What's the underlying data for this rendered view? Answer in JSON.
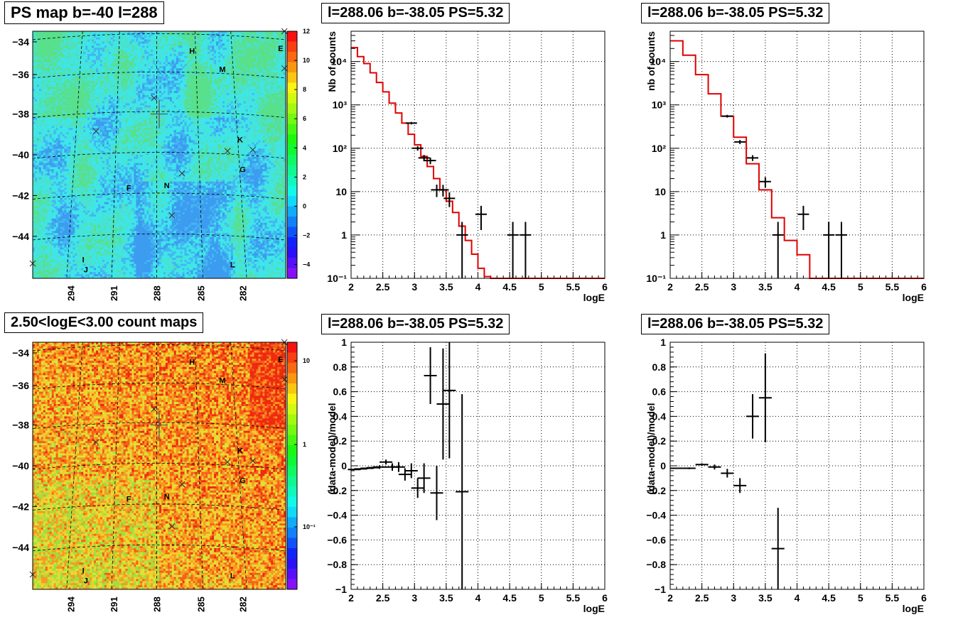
{
  "panels": {
    "map1": {
      "title": "PS map b=-40 l=288"
    },
    "map2": {
      "title": "2.50<logE<3.00 count maps"
    },
    "spec1": {
      "title": "l=288.06 b=-38.05 PS=5.32"
    },
    "spec2": {
      "title": "l=288.06 b=-38.05 PS=5.32"
    },
    "res1": {
      "title": "l=288.06 b=-38.05 PS=5.32"
    },
    "res2": {
      "title": "l=288.06 b=-38.05 PS=5.32"
    }
  },
  "chart_data": [
    {
      "id": "map1",
      "type": "heatmap",
      "title": "PS map b=-40 l=288",
      "ylim": [
        -45.8,
        -33.5
      ],
      "y_ticks": [
        "-34",
        "-36",
        "-38",
        "-40",
        "-42",
        "-44"
      ],
      "x_ticks": [
        "294",
        "291",
        "288",
        "285",
        "282"
      ],
      "colorbar": {
        "range": [
          -5,
          12
        ],
        "ticks": [
          "12",
          "10",
          "8",
          "6",
          "4",
          "2",
          "0",
          "-2",
          "-4"
        ]
      },
      "source_labels": [
        "H",
        "M",
        "E",
        "K",
        "G",
        "F",
        "N",
        "I",
        "J",
        "L"
      ]
    },
    {
      "id": "map2",
      "type": "heatmap",
      "title": "2.50<logE<3.00 count maps",
      "ylim": [
        -45.8,
        -33.5
      ],
      "y_ticks": [
        "-34",
        "-36",
        "-38",
        "-40",
        "-42",
        "-44"
      ],
      "x_ticks": [
        "294",
        "291",
        "288",
        "285",
        "282"
      ],
      "colorbar": {
        "scale": "log",
        "ticks": [
          "10",
          "1",
          "10⁻¹"
        ]
      },
      "source_labels": [
        "H",
        "M",
        "E",
        "K",
        "G",
        "F",
        "N",
        "I",
        "J",
        "L"
      ]
    },
    {
      "id": "spec1",
      "type": "line",
      "title": "l=288.06 b=-38.05 PS=5.32",
      "xlabel": "logE",
      "ylabel": "Nb of counts",
      "xlim": [
        2,
        6
      ],
      "ylim": [
        0.1,
        50000
      ],
      "yscale": "log",
      "x_ticks": [
        "2",
        "2.5",
        "3",
        "3.5",
        "4",
        "4.5",
        "5",
        "5.5",
        "6"
      ],
      "y_ticks": [
        {
          "v": 10000,
          "t": "10⁴"
        },
        {
          "v": 1000,
          "t": "10³"
        },
        {
          "v": 100,
          "t": "10²"
        },
        {
          "v": 10,
          "t": "10"
        },
        {
          "v": 1,
          "t": "1"
        },
        {
          "v": 0.1,
          "t": "10⁻¹"
        }
      ],
      "grid": true,
      "model": {
        "edges": [
          2.0,
          2.1,
          2.2,
          2.3,
          2.4,
          2.5,
          2.6,
          2.7,
          2.8,
          2.9,
          3.0,
          3.1,
          3.2,
          3.3,
          3.4,
          3.5,
          3.6,
          3.7,
          3.8,
          3.9,
          4.0,
          4.1,
          4.2,
          6.0
        ],
        "values": [
          21000,
          13000,
          9000,
          5500,
          3300,
          2000,
          1100,
          650,
          380,
          210,
          120,
          65,
          38,
          20,
          11,
          6,
          3.3,
          1.6,
          0.75,
          0.36,
          0.17,
          0.11,
          0.1
        ]
      },
      "data": [
        {
          "x": 3.15,
          "y": 60,
          "err": 10
        },
        {
          "x": 3.25,
          "y": 52,
          "err": 9
        },
        {
          "x": 3.05,
          "y": 100,
          "err": 12
        },
        {
          "x": 2.95,
          "y": 380,
          "err": 25
        },
        {
          "x": 3.35,
          "y": 11,
          "err": 3.5
        },
        {
          "x": 3.45,
          "y": 11,
          "err": 3.3
        },
        {
          "x": 3.55,
          "y": 7,
          "err": 2.6
        },
        {
          "x": 3.75,
          "y": 1,
          "err": 1
        },
        {
          "x": 4.05,
          "y": 3,
          "err": 1.7
        },
        {
          "x": 4.55,
          "y": 1,
          "err": 1
        },
        {
          "x": 4.75,
          "y": 1,
          "err": 1
        }
      ]
    },
    {
      "id": "spec2",
      "type": "line",
      "title": "l=288.06 b=-38.05 PS=5.32",
      "xlabel": "logE",
      "ylabel": "nb of counts",
      "xlim": [
        2,
        6
      ],
      "ylim": [
        0.1,
        50000
      ],
      "yscale": "log",
      "x_ticks": [
        "2",
        "2.5",
        "3",
        "3.5",
        "4",
        "4.5",
        "5",
        "5.5",
        "6"
      ],
      "y_ticks": [
        {
          "v": 10000,
          "t": "10⁴"
        },
        {
          "v": 1000,
          "t": "10³"
        },
        {
          "v": 100,
          "t": "10²"
        },
        {
          "v": 10,
          "t": "10"
        },
        {
          "v": 1,
          "t": "1"
        },
        {
          "v": 0.1,
          "t": "10⁻¹"
        }
      ],
      "grid": true,
      "model": {
        "edges": [
          2.0,
          2.2,
          2.4,
          2.6,
          2.8,
          3.0,
          3.2,
          3.4,
          3.6,
          3.8,
          4.0,
          4.2,
          6.0
        ],
        "values": [
          30000,
          14000,
          5000,
          1800,
          550,
          180,
          44,
          11,
          2.5,
          0.75,
          0.35,
          0.1
        ]
      },
      "data": [
        {
          "x": 2.9,
          "y": 550,
          "err": 40
        },
        {
          "x": 3.1,
          "y": 140,
          "err": 15
        },
        {
          "x": 3.3,
          "y": 60,
          "err": 9
        },
        {
          "x": 3.5,
          "y": 17,
          "err": 4.5
        },
        {
          "x": 3.7,
          "y": 1,
          "err": 1
        },
        {
          "x": 4.1,
          "y": 3,
          "err": 1.7
        },
        {
          "x": 4.5,
          "y": 1,
          "err": 1
        },
        {
          "x": 4.7,
          "y": 1,
          "err": 1
        }
      ]
    },
    {
      "id": "res1",
      "type": "scatter",
      "title": "l=288.06 b=-38.05 PS=5.32",
      "xlabel": "logE",
      "ylabel": "(data-model)/model",
      "xlim": [
        2,
        6
      ],
      "ylim": [
        -1,
        1
      ],
      "x_ticks": [
        "2",
        "2.5",
        "3",
        "3.5",
        "4",
        "4.5",
        "5",
        "5.5",
        "6"
      ],
      "y_ticks": [
        "1",
        "0.8",
        "0.6",
        "0.4",
        "0.2",
        "0",
        "-0.2",
        "-0.4",
        "-0.6",
        "-0.8",
        "-1"
      ],
      "grid": true,
      "points": [
        {
          "x": 2.05,
          "y": -0.03,
          "err": 0.005
        },
        {
          "x": 2.15,
          "y": -0.025,
          "err": 0.006
        },
        {
          "x": 2.25,
          "y": -0.02,
          "err": 0.008
        },
        {
          "x": 2.35,
          "y": -0.015,
          "err": 0.01
        },
        {
          "x": 2.45,
          "y": -0.01,
          "err": 0.015
        },
        {
          "x": 2.55,
          "y": 0.03,
          "err": 0.02
        },
        {
          "x": 2.65,
          "y": -0.01,
          "err": 0.03
        },
        {
          "x": 2.75,
          "y": -0.01,
          "err": 0.04
        },
        {
          "x": 2.85,
          "y": -0.07,
          "err": 0.05
        },
        {
          "x": 2.95,
          "y": -0.04,
          "err": 0.06
        },
        {
          "x": 3.05,
          "y": -0.18,
          "err": 0.08
        },
        {
          "x": 3.15,
          "y": -0.1,
          "err": 0.12
        },
        {
          "x": 3.25,
          "y": 0.73,
          "err": 0.23
        },
        {
          "x": 3.35,
          "y": -0.22,
          "err": 0.22
        },
        {
          "x": 3.45,
          "y": 0.5,
          "err": 0.45
        },
        {
          "x": 3.55,
          "y": 0.61,
          "err": 0.55
        },
        {
          "x": 3.75,
          "y": -0.21,
          "err": 0.79
        }
      ]
    },
    {
      "id": "res2",
      "type": "scatter",
      "title": "l=288.06 b=-38.05 PS=5.32",
      "xlabel": "logE",
      "ylabel": "(data-model)/model",
      "xlim": [
        2,
        6
      ],
      "ylim": [
        -1,
        1
      ],
      "x_ticks": [
        "2",
        "2.5",
        "3",
        "3.5",
        "4",
        "4.5",
        "5",
        "5.5",
        "6"
      ],
      "y_ticks": [
        "1",
        "0.8",
        "0.6",
        "0.4",
        "0.2",
        "0",
        "-0.2",
        "-0.4",
        "-0.6",
        "-0.8",
        "-1"
      ],
      "grid": true,
      "points": [
        {
          "x": 2.1,
          "y": -0.02,
          "err": 0.005
        },
        {
          "x": 2.3,
          "y": -0.02,
          "err": 0.007
        },
        {
          "x": 2.5,
          "y": 0.01,
          "err": 0.01
        },
        {
          "x": 2.7,
          "y": -0.01,
          "err": 0.02
        },
        {
          "x": 2.9,
          "y": -0.06,
          "err": 0.035
        },
        {
          "x": 3.1,
          "y": -0.16,
          "err": 0.06
        },
        {
          "x": 3.3,
          "y": 0.4,
          "err": 0.18
        },
        {
          "x": 3.5,
          "y": 0.55,
          "err": 0.36
        },
        {
          "x": 3.7,
          "y": -0.67,
          "err": 0.33
        }
      ]
    }
  ]
}
